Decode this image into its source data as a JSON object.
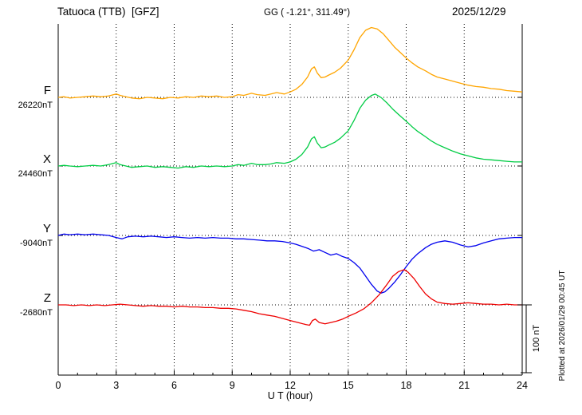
{
  "chart_data": {
    "type": "line",
    "title": "Tatuoca (TTB)  [GFZ]",
    "gg": "GG ( -1.21°, 311.49°)",
    "date": "2025/12/29",
    "xlabel": "U T (hour)",
    "xlim": [
      0,
      24
    ],
    "x_ticks": [
      0,
      3,
      6,
      9,
      12,
      15,
      18,
      21,
      24
    ],
    "grid": "dotted vertical lines every 3 hours; dotted horizontal baseline per trace",
    "legend_position": "left baseline labels",
    "scale_bar": {
      "label": "100 nT",
      "nT": 100
    },
    "plotted_at": "Plotted at 2026/01/29 00:45 UT",
    "points_format": "[UT hour, offset in nT from baseline value]",
    "series": [
      {
        "name": "F",
        "baseline_label": "26220nT",
        "baseline_nT": 26220,
        "color": "#FFA500",
        "points": [
          [
            0,
            0
          ],
          [
            0.3,
            1
          ],
          [
            0.6,
            -1
          ],
          [
            1,
            0
          ],
          [
            1.4,
            1
          ],
          [
            1.8,
            2
          ],
          [
            2.2,
            1
          ],
          [
            2.6,
            2
          ],
          [
            3,
            5
          ],
          [
            3.2,
            3
          ],
          [
            3.5,
            1
          ],
          [
            3.8,
            -1
          ],
          [
            4.2,
            -2
          ],
          [
            4.6,
            0
          ],
          [
            5,
            -1
          ],
          [
            5.4,
            -2
          ],
          [
            5.8,
            0
          ],
          [
            6.2,
            -1
          ],
          [
            6.6,
            1
          ],
          [
            7,
            0
          ],
          [
            7.4,
            2
          ],
          [
            7.8,
            1
          ],
          [
            8.2,
            2
          ],
          [
            8.6,
            0
          ],
          [
            9,
            1
          ],
          [
            9.3,
            4
          ],
          [
            9.6,
            3
          ],
          [
            10,
            6
          ],
          [
            10.3,
            4
          ],
          [
            10.7,
            3
          ],
          [
            11,
            5
          ],
          [
            11.3,
            7
          ],
          [
            11.7,
            5
          ],
          [
            12,
            8
          ],
          [
            12.3,
            12
          ],
          [
            12.6,
            19
          ],
          [
            12.9,
            30
          ],
          [
            13.1,
            42
          ],
          [
            13.25,
            45
          ],
          [
            13.4,
            36
          ],
          [
            13.6,
            29
          ],
          [
            13.8,
            30
          ],
          [
            14,
            33
          ],
          [
            14.3,
            37
          ],
          [
            14.6,
            43
          ],
          [
            15,
            55
          ],
          [
            15.3,
            70
          ],
          [
            15.6,
            88
          ],
          [
            15.9,
            99
          ],
          [
            16.2,
            103
          ],
          [
            16.5,
            101
          ],
          [
            16.8,
            94
          ],
          [
            17.1,
            84
          ],
          [
            17.4,
            74
          ],
          [
            17.7,
            66
          ],
          [
            18,
            58
          ],
          [
            18.3,
            51
          ],
          [
            18.6,
            45
          ],
          [
            19,
            39
          ],
          [
            19.3,
            34
          ],
          [
            19.6,
            30
          ],
          [
            20,
            27
          ],
          [
            20.4,
            24
          ],
          [
            20.8,
            21
          ],
          [
            21.2,
            18
          ],
          [
            21.6,
            16
          ],
          [
            22,
            15
          ],
          [
            22.4,
            13
          ],
          [
            22.8,
            12
          ],
          [
            23.2,
            10
          ],
          [
            23.6,
            9
          ],
          [
            24,
            8
          ]
        ]
      },
      {
        "name": "X",
        "baseline_label": "24460nT",
        "baseline_nT": 24460,
        "color": "#00CC44",
        "points": [
          [
            0,
            0
          ],
          [
            0.3,
            1
          ],
          [
            0.6,
            0
          ],
          [
            1,
            -1
          ],
          [
            1.4,
            0
          ],
          [
            1.8,
            1
          ],
          [
            2.2,
            0
          ],
          [
            2.6,
            2
          ],
          [
            3,
            5
          ],
          [
            3.2,
            2
          ],
          [
            3.5,
            0
          ],
          [
            3.8,
            -2
          ],
          [
            4.2,
            -1
          ],
          [
            4.6,
            0
          ],
          [
            5,
            -2
          ],
          [
            5.4,
            -1
          ],
          [
            5.8,
            -2
          ],
          [
            6.2,
            -3
          ],
          [
            6.6,
            -1
          ],
          [
            7,
            -2
          ],
          [
            7.4,
            0
          ],
          [
            7.8,
            -1
          ],
          [
            8.2,
            0
          ],
          [
            8.6,
            -1
          ],
          [
            9,
            0
          ],
          [
            9.3,
            2
          ],
          [
            9.6,
            1
          ],
          [
            10,
            4
          ],
          [
            10.3,
            2
          ],
          [
            10.7,
            2
          ],
          [
            11,
            3
          ],
          [
            11.3,
            5
          ],
          [
            11.7,
            4
          ],
          [
            12,
            6
          ],
          [
            12.3,
            10
          ],
          [
            12.6,
            17
          ],
          [
            12.9,
            28
          ],
          [
            13.1,
            40
          ],
          [
            13.25,
            43
          ],
          [
            13.4,
            34
          ],
          [
            13.6,
            27
          ],
          [
            13.8,
            28
          ],
          [
            14,
            31
          ],
          [
            14.3,
            35
          ],
          [
            14.6,
            41
          ],
          [
            15,
            52
          ],
          [
            15.3,
            67
          ],
          [
            15.6,
            85
          ],
          [
            15.9,
            97
          ],
          [
            16.2,
            104
          ],
          [
            16.4,
            106
          ],
          [
            16.7,
            101
          ],
          [
            17,
            93
          ],
          [
            17.3,
            84
          ],
          [
            17.6,
            76
          ],
          [
            18,
            66
          ],
          [
            18.3,
            58
          ],
          [
            18.6,
            51
          ],
          [
            19,
            43
          ],
          [
            19.3,
            37
          ],
          [
            19.6,
            32
          ],
          [
            20,
            27
          ],
          [
            20.4,
            22
          ],
          [
            20.8,
            18
          ],
          [
            21.2,
            15
          ],
          [
            21.6,
            12
          ],
          [
            22,
            10
          ],
          [
            22.4,
            9
          ],
          [
            22.8,
            8
          ],
          [
            23.2,
            7
          ],
          [
            23.6,
            6
          ],
          [
            24,
            6
          ]
        ]
      },
      {
        "name": "Y",
        "baseline_label": "-9040nT",
        "baseline_nT": -9040,
        "color": "#0000EE",
        "points": [
          [
            0,
            0
          ],
          [
            0.3,
            2
          ],
          [
            0.6,
            1
          ],
          [
            1,
            2
          ],
          [
            1.4,
            1
          ],
          [
            1.8,
            2
          ],
          [
            2.2,
            1
          ],
          [
            2.6,
            0
          ],
          [
            3,
            -3
          ],
          [
            3.3,
            -5
          ],
          [
            3.6,
            -2
          ],
          [
            4,
            -1
          ],
          [
            4.4,
            -2
          ],
          [
            4.8,
            -1
          ],
          [
            5.2,
            -2
          ],
          [
            5.6,
            -3
          ],
          [
            6,
            -2
          ],
          [
            6.4,
            -3
          ],
          [
            6.8,
            -4
          ],
          [
            7.2,
            -3
          ],
          [
            7.6,
            -4
          ],
          [
            8,
            -3
          ],
          [
            8.4,
            -4
          ],
          [
            8.8,
            -4
          ],
          [
            9.2,
            -5
          ],
          [
            9.6,
            -5
          ],
          [
            10,
            -6
          ],
          [
            10.4,
            -7
          ],
          [
            10.8,
            -8
          ],
          [
            11.2,
            -8
          ],
          [
            11.6,
            -9
          ],
          [
            12,
            -11
          ],
          [
            12.3,
            -13
          ],
          [
            12.6,
            -16
          ],
          [
            12.9,
            -19
          ],
          [
            13.2,
            -23
          ],
          [
            13.5,
            -21
          ],
          [
            13.8,
            -25
          ],
          [
            14.1,
            -29
          ],
          [
            14.4,
            -27
          ],
          [
            14.7,
            -31
          ],
          [
            15,
            -34
          ],
          [
            15.3,
            -40
          ],
          [
            15.6,
            -48
          ],
          [
            15.9,
            -60
          ],
          [
            16.2,
            -72
          ],
          [
            16.5,
            -82
          ],
          [
            16.7,
            -85
          ],
          [
            16.9,
            -83
          ],
          [
            17.1,
            -78
          ],
          [
            17.4,
            -69
          ],
          [
            17.7,
            -58
          ],
          [
            18,
            -46
          ],
          [
            18.3,
            -35
          ],
          [
            18.6,
            -27
          ],
          [
            19,
            -18
          ],
          [
            19.3,
            -13
          ],
          [
            19.6,
            -10
          ],
          [
            20,
            -8
          ],
          [
            20.4,
            -10
          ],
          [
            20.8,
            -14
          ],
          [
            21.2,
            -17
          ],
          [
            21.6,
            -15
          ],
          [
            22,
            -11
          ],
          [
            22.4,
            -8
          ],
          [
            22.8,
            -5
          ],
          [
            23.2,
            -4
          ],
          [
            23.6,
            -3
          ],
          [
            24,
            -3
          ]
        ]
      },
      {
        "name": "Z",
        "baseline_label": "-2680nT",
        "baseline_nT": -2680,
        "color": "#EE0000",
        "points": [
          [
            0,
            0
          ],
          [
            0.4,
            0
          ],
          [
            0.8,
            -1
          ],
          [
            1.2,
            0
          ],
          [
            1.6,
            -1
          ],
          [
            2,
            0
          ],
          [
            2.4,
            -1
          ],
          [
            2.8,
            0
          ],
          [
            3.2,
            1
          ],
          [
            3.6,
            0
          ],
          [
            4,
            -1
          ],
          [
            4.4,
            -2
          ],
          [
            4.8,
            -1
          ],
          [
            5.2,
            -2
          ],
          [
            5.6,
            -2
          ],
          [
            6,
            -3
          ],
          [
            6.4,
            -2
          ],
          [
            6.8,
            -3
          ],
          [
            7.2,
            -3
          ],
          [
            7.6,
            -4
          ],
          [
            8,
            -4
          ],
          [
            8.4,
            -5
          ],
          [
            8.8,
            -5
          ],
          [
            9.2,
            -6
          ],
          [
            9.6,
            -8
          ],
          [
            10,
            -10
          ],
          [
            10.4,
            -13
          ],
          [
            10.8,
            -15
          ],
          [
            11.2,
            -17
          ],
          [
            11.6,
            -20
          ],
          [
            12,
            -23
          ],
          [
            12.4,
            -26
          ],
          [
            12.8,
            -29
          ],
          [
            13,
            -30
          ],
          [
            13.15,
            -23
          ],
          [
            13.3,
            -21
          ],
          [
            13.5,
            -26
          ],
          [
            13.8,
            -28
          ],
          [
            14.1,
            -26
          ],
          [
            14.4,
            -24
          ],
          [
            14.7,
            -21
          ],
          [
            15,
            -17
          ],
          [
            15.4,
            -12
          ],
          [
            15.8,
            -6
          ],
          [
            16.2,
            3
          ],
          [
            16.6,
            15
          ],
          [
            17,
            30
          ],
          [
            17.3,
            42
          ],
          [
            17.6,
            49
          ],
          [
            17.9,
            52
          ],
          [
            18.1,
            48
          ],
          [
            18.4,
            39
          ],
          [
            18.7,
            27
          ],
          [
            19,
            16
          ],
          [
            19.3,
            9
          ],
          [
            19.6,
            4
          ],
          [
            20,
            2
          ],
          [
            20.4,
            1
          ],
          [
            20.8,
            2
          ],
          [
            21.2,
            3
          ],
          [
            21.6,
            2
          ],
          [
            22,
            1
          ],
          [
            22.4,
            1
          ],
          [
            22.8,
            0
          ],
          [
            23.2,
            1
          ],
          [
            23.6,
            0
          ],
          [
            24,
            0
          ]
        ]
      }
    ]
  }
}
